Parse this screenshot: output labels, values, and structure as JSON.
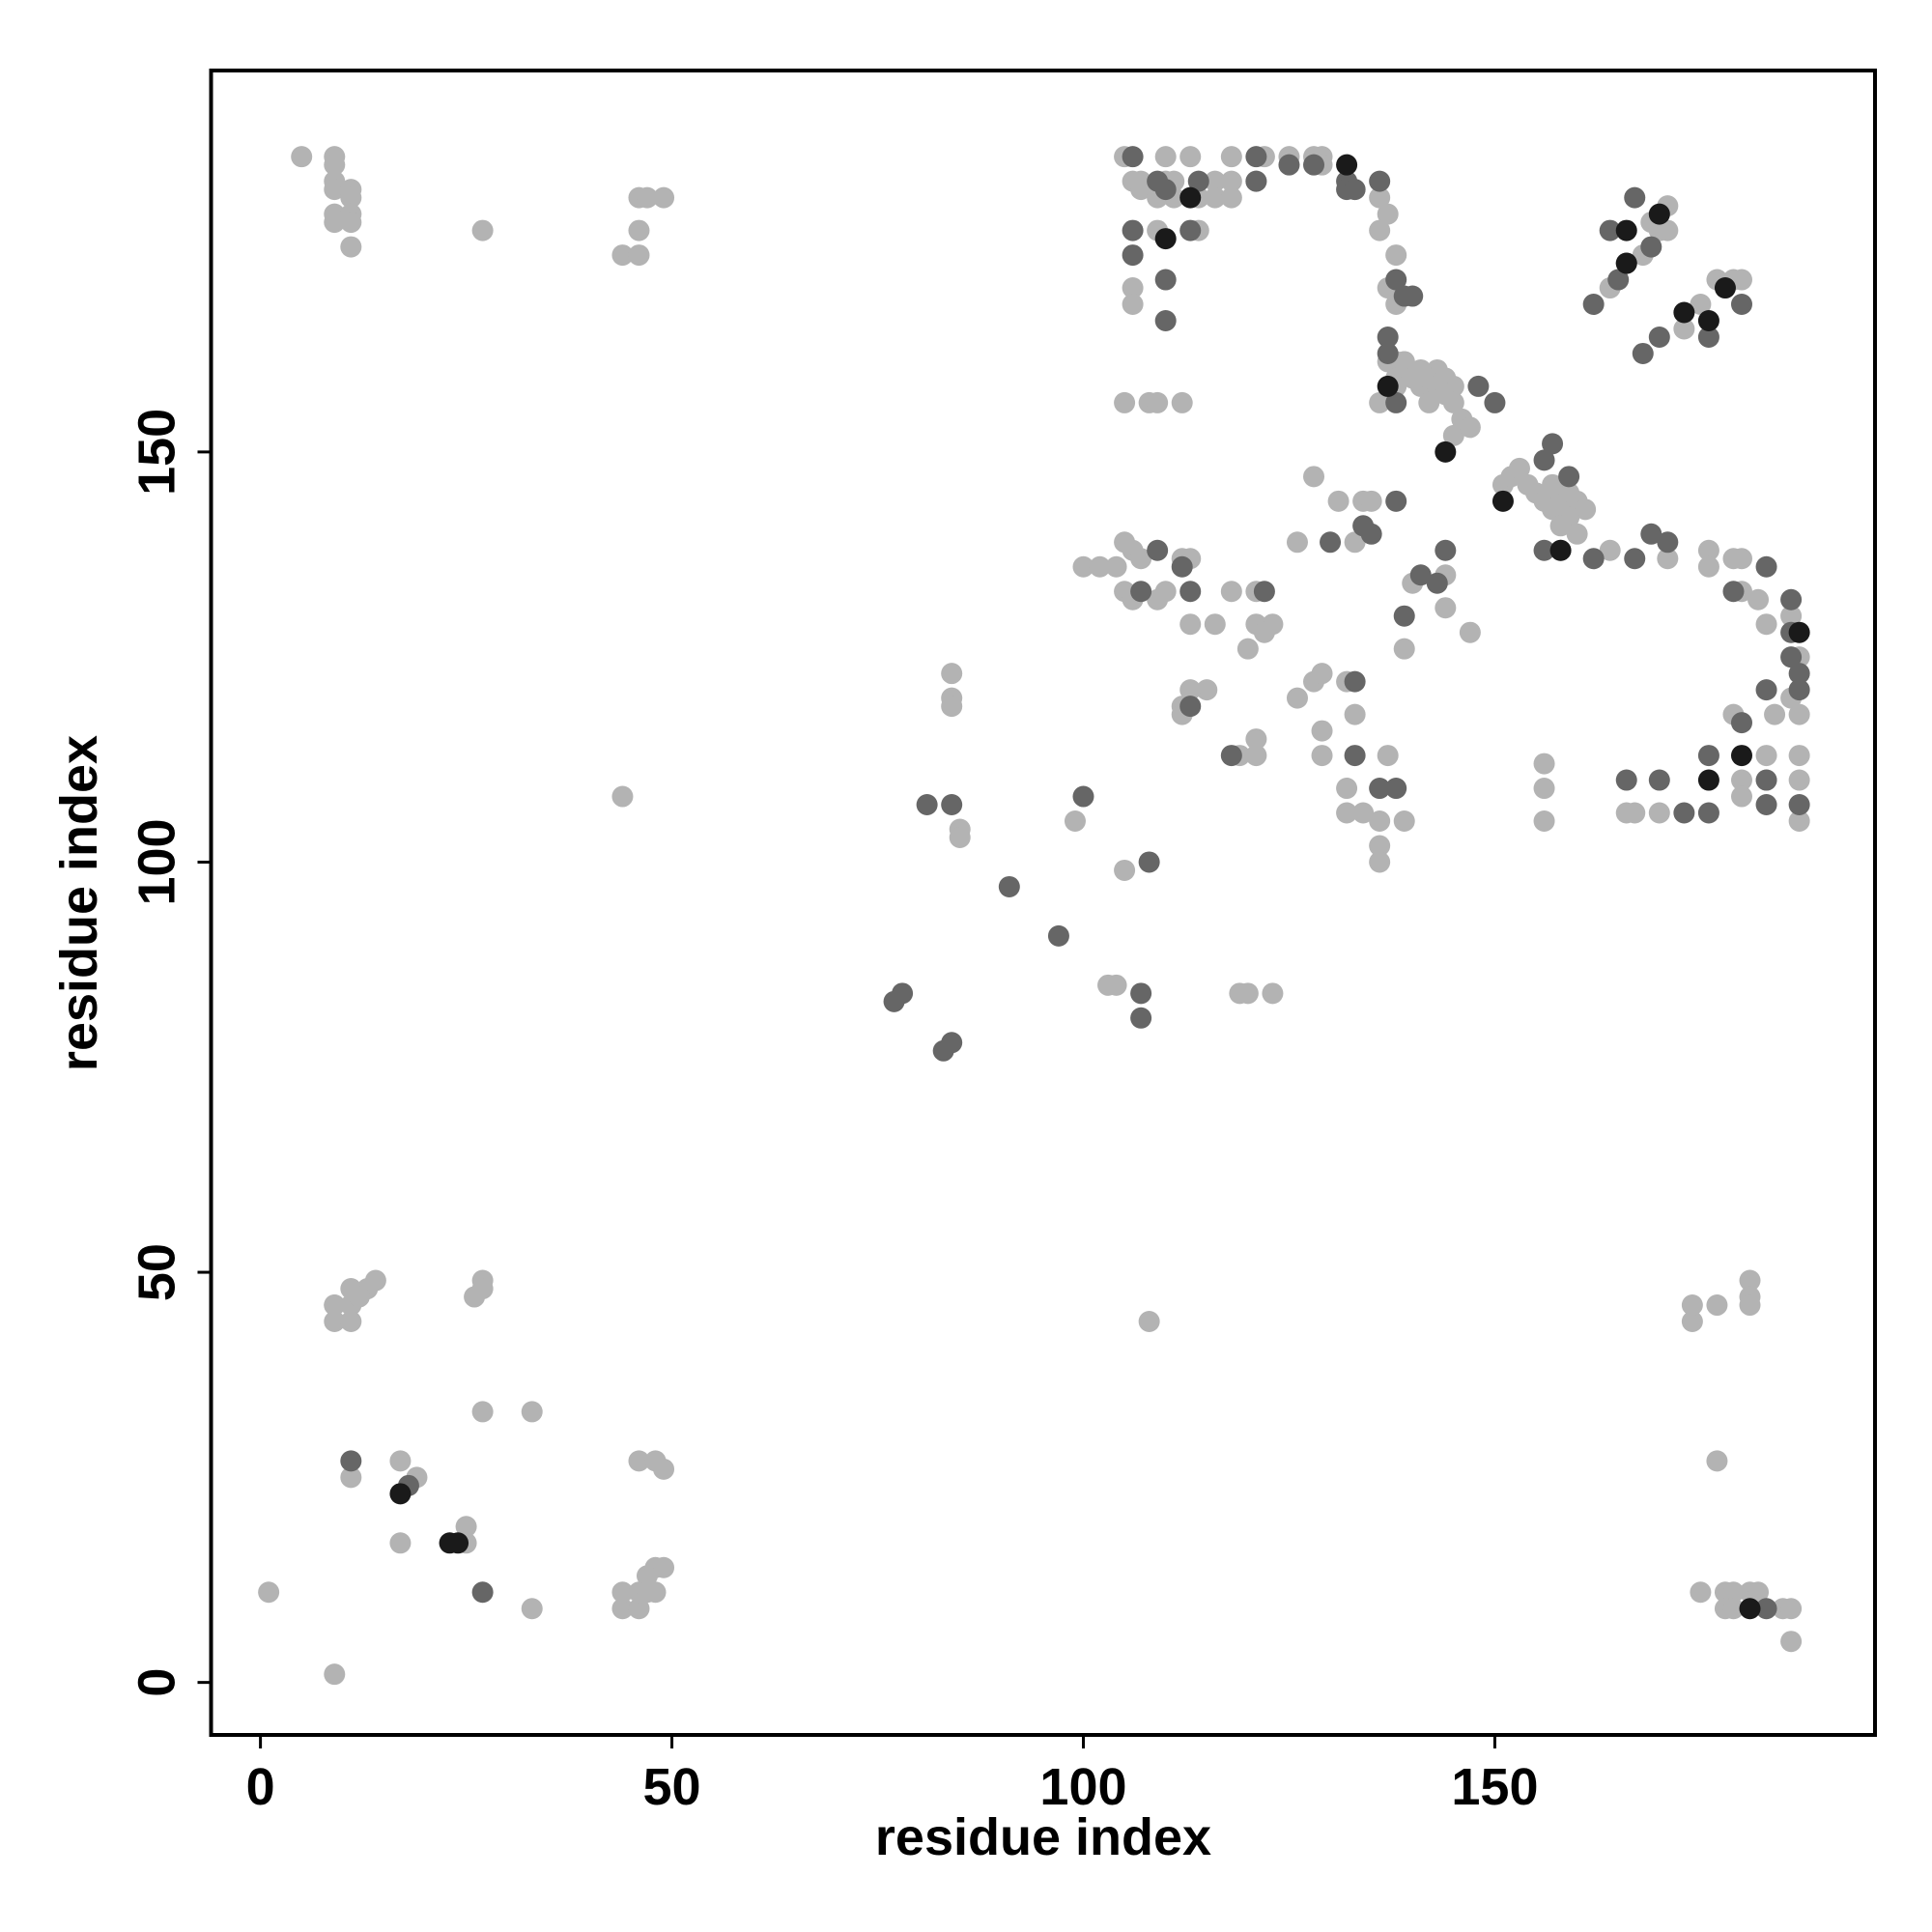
{
  "chart_data": {
    "type": "scatter",
    "x_label": "residue index",
    "y_label": "residue index",
    "xlim": [
      -6,
      196.2
    ],
    "ylim": [
      -6.4,
      196.5
    ],
    "xticks": [
      0,
      50,
      100,
      150
    ],
    "yticks": [
      0,
      50,
      100,
      150
    ],
    "grid": false,
    "series": [
      {
        "color": "#b3b3b3",
        "x": [
          9,
          9,
          11,
          11,
          11,
          13,
          14,
          12,
          26,
          27,
          27,
          9,
          27,
          33,
          17,
          19,
          11,
          25,
          25,
          17,
          1,
          33,
          44,
          44,
          46,
          46,
          47,
          47,
          48,
          48,
          49,
          46,
          48,
          49,
          9,
          5,
          9,
          9,
          9,
          9,
          11,
          11,
          9,
          11,
          11,
          9,
          11,
          27,
          44,
          46,
          46,
          46,
          47,
          49,
          44,
          174,
          174,
          177,
          181,
          181,
          181,
          177,
          175,
          178,
          179,
          178,
          179,
          181,
          182,
          185,
          186,
          186,
          108,
          84,
          84,
          84,
          85,
          85,
          99,
          103,
          104,
          105,
          119,
          120,
          123,
          105,
          110,
          113,
          118,
          122,
          125,
          128,
          129,
          129,
          107,
          110,
          116,
          118,
          121,
          106,
          111,
          107,
          133,
          109,
          111,
          114,
          116,
          118,
          136,
          137,
          114,
          109,
          136,
          138,
          106,
          137,
          106,
          138,
          137,
          138,
          139,
          136,
          105,
          108,
          109,
          112,
          158,
          164,
          171,
          164,
          168,
          169,
          170,
          171,
          170,
          171,
          173,
          175,
          177,
          179,
          180,
          176,
          176,
          179,
          180,
          180,
          182,
          186,
          183,
          187,
          186,
          179,
          184,
          187,
          183,
          187,
          180,
          183,
          187,
          180,
          187,
          166,
          167,
          170,
          156,
          156,
          156,
          100,
          102,
          104,
          105,
          106,
          107,
          112,
          113,
          105,
          110,
          118,
          121,
          106,
          109,
          113,
          116,
          121,
          123,
          122,
          120,
          112,
          115,
          113,
          112,
          119,
          121,
          121,
          126,
          128,
          131,
          133,
          134,
          135,
          128,
          129,
          132,
          126,
          129,
          133,
          129,
          137,
          132,
          132,
          134,
          136,
          139,
          136,
          136,
          139,
          140,
          144,
          144,
          147,
          139,
          140,
          141,
          142,
          143,
          144,
          145,
          143,
          144,
          145,
          146,
          145,
          147,
          142,
          141,
          138,
          138,
          151,
          152,
          153,
          154,
          155,
          156,
          157,
          158,
          159,
          160,
          161,
          159,
          158,
          160,
          157
        ],
        "values": [
          46,
          44,
          48,
          46,
          44,
          48,
          49,
          47,
          47,
          49,
          48,
          46,
          33,
          33,
          27,
          25,
          25,
          17,
          19,
          17,
          11,
          9,
          9,
          11,
          9,
          11,
          13,
          11,
          14,
          11,
          14,
          27,
          27,
          26,
          1,
          186,
          186,
          185,
          183,
          182,
          182,
          181,
          179,
          179,
          178,
          178,
          175,
          177,
          174,
          174,
          177,
          181,
          181,
          181,
          108,
          44,
          46,
          46,
          49,
          47,
          46,
          27,
          11,
          11,
          11,
          9,
          9,
          11,
          11,
          9,
          9,
          5,
          44,
          123,
          120,
          119,
          104,
          103,
          105,
          85,
          85,
          99,
          84,
          84,
          84,
          186,
          186,
          186,
          186,
          186,
          186,
          186,
          186,
          185,
          183,
          183,
          183,
          183,
          183,
          183,
          183,
          182,
          182,
          181,
          181,
          181,
          181,
          181,
          181,
          179,
          177,
          177,
          177,
          174,
          170,
          170,
          168,
          168,
          161,
          161,
          161,
          156,
          156,
          156,
          156,
          156,
          138,
          138,
          137,
          170,
          174,
          178,
          177,
          180,
          177,
          177,
          165,
          168,
          171,
          171,
          171,
          138,
          136,
          137,
          137,
          133,
          132,
          130,
          129,
          125,
          120,
          118,
          118,
          118,
          113,
          113,
          110,
          110,
          110,
          108,
          105,
          106,
          106,
          106,
          112,
          109,
          105,
          136,
          136,
          136,
          139,
          138,
          137,
          137,
          137,
          133,
          133,
          133,
          133,
          132,
          132,
          129,
          129,
          129,
          129,
          128,
          126,
          119,
          121,
          121,
          118,
          113,
          115,
          113,
          139,
          147,
          144,
          139,
          144,
          144,
          122,
          123,
          122,
          120,
          116,
          118,
          113,
          113,
          109,
          106,
          106,
          105,
          105,
          102,
          100,
          126,
          134,
          135,
          131,
          128,
          161,
          159,
          158,
          159,
          160,
          159,
          158,
          158,
          157,
          156,
          154,
          152,
          153,
          156,
          160,
          159,
          158,
          146,
          147,
          148,
          146,
          145,
          144,
          143,
          144,
          145,
          144,
          143,
          142,
          141,
          140,
          146
        ]
      },
      {
        "color": "#666666",
        "x": [
          11,
          18,
          27,
          183,
          77,
          78,
          83,
          84,
          81,
          84,
          91,
          97,
          100,
          108,
          107,
          107,
          106,
          121,
          128,
          125,
          109,
          114,
          121,
          132,
          136,
          110,
          132,
          133,
          106,
          113,
          106,
          110,
          110,
          138,
          139,
          140,
          137,
          137,
          138,
          148,
          150,
          156,
          157,
          159,
          156,
          162,
          167,
          169,
          171,
          162,
          165,
          166,
          169,
          164,
          167,
          168,
          170,
          176,
          180,
          183,
          179,
          186,
          186,
          186,
          187,
          183,
          187,
          180,
          176,
          183,
          183,
          187,
          176,
          173,
          166,
          170,
          109,
          112,
          107,
          113,
          122,
          113,
          118,
          130,
          134,
          135,
          138,
          133,
          133,
          136,
          138,
          139,
          141,
          143,
          144
        ],
        "values": [
          27,
          24,
          11,
          9,
          83,
          84,
          77,
          78,
          107,
          107,
          97,
          91,
          108,
          100,
          84,
          81,
          186,
          186,
          185,
          185,
          183,
          183,
          183,
          183,
          183,
          182,
          182,
          182,
          177,
          177,
          174,
          171,
          166,
          171,
          169,
          169,
          164,
          162,
          156,
          158,
          156,
          149,
          151,
          147,
          138,
          137,
          137,
          140,
          139,
          168,
          171,
          173,
          175,
          177,
          181,
          162,
          164,
          164,
          168,
          136,
          133,
          132,
          128,
          125,
          123,
          121,
          121,
          117,
          113,
          110,
          107,
          107,
          106,
          106,
          110,
          110,
          138,
          136,
          133,
          133,
          133,
          119,
          113,
          139,
          141,
          140,
          144,
          122,
          113,
          109,
          109,
          130,
          135,
          134,
          138
        ]
      },
      {
        "color": "#1a1a1a",
        "x": [
          17,
          24,
          23,
          110,
          113,
          132,
          137,
          144,
          151,
          158,
          166,
          166,
          170,
          173,
          176,
          178,
          180,
          176,
          187,
          181
        ],
        "values": [
          23,
          17,
          17,
          176,
          181,
          185,
          158,
          150,
          144,
          138,
          173,
          177,
          179,
          167,
          166,
          170,
          113,
          110,
          128,
          9
        ]
      }
    ]
  }
}
